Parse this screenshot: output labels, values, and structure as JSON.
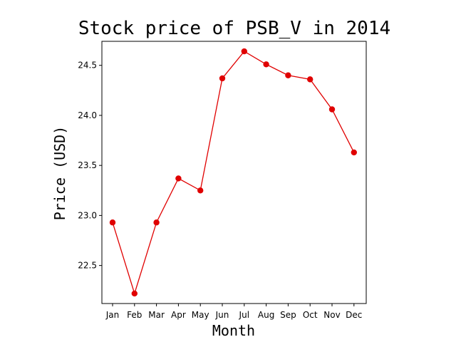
{
  "chart_data": {
    "type": "line",
    "title": "Stock price of PSB_V in 2014",
    "xlabel": "Month",
    "ylabel": "Price (USD)",
    "categories": [
      "Jan",
      "Feb",
      "Mar",
      "Apr",
      "May",
      "Jun",
      "Jul",
      "Aug",
      "Sep",
      "Oct",
      "Nov",
      "Dec"
    ],
    "series": [
      {
        "values": [
          22.93,
          22.22,
          22.93,
          23.37,
          23.25,
          24.37,
          24.64,
          24.51,
          24.4,
          24.36,
          24.06,
          23.63
        ],
        "color": "#e00000"
      }
    ],
    "ylim": [
      22.12,
      24.74
    ],
    "yticks": [
      22.5,
      23.0,
      23.5,
      24.0,
      24.5
    ],
    "ytick_labels": [
      "22.5",
      "23.0",
      "23.5",
      "24.0",
      "24.5"
    ],
    "grid": false,
    "legend": false
  }
}
